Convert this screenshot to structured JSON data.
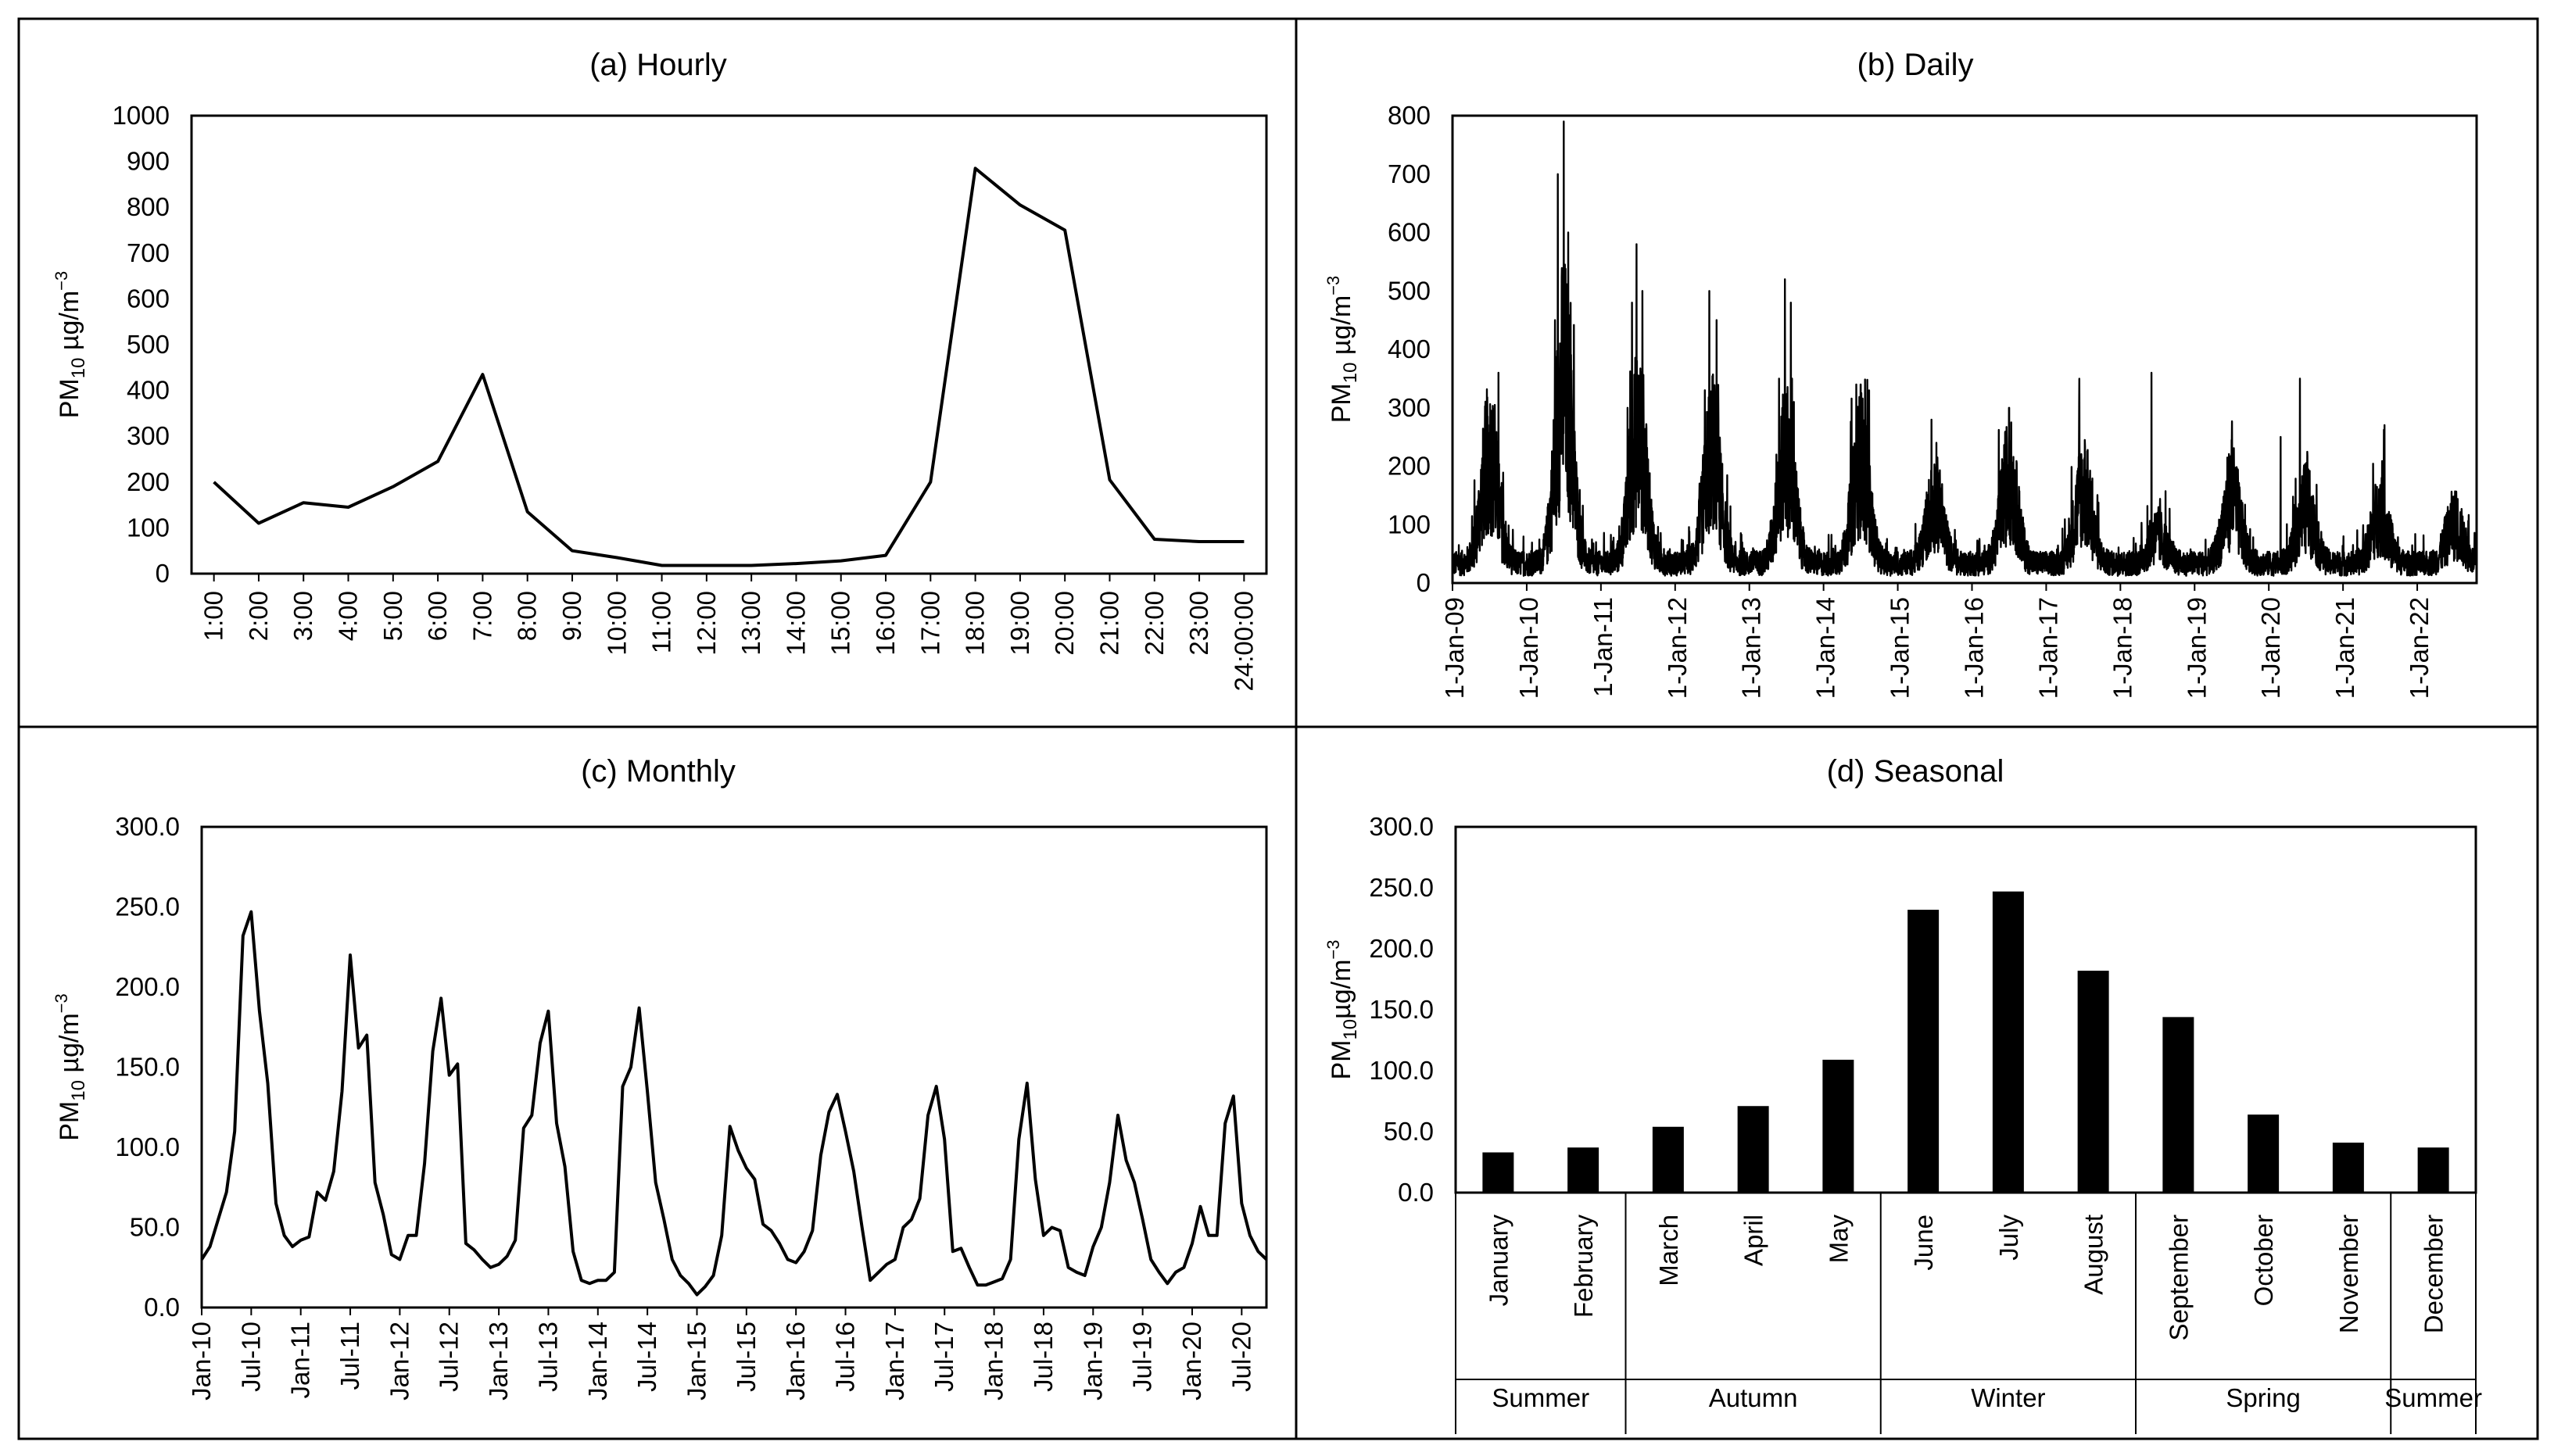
{
  "figure": {
    "frame_color": "#000000",
    "line_color": "#000000",
    "bar_color": "#000000"
  },
  "chart_data": [
    {
      "id": "hourly",
      "type": "line",
      "title": "(a) Hourly",
      "ylabel": {
        "main": "PM",
        "sub": "10",
        "unit": " µg/m",
        "sup": "−3"
      },
      "ylim": [
        0,
        1000
      ],
      "yticks": [
        0,
        100,
        200,
        300,
        400,
        500,
        600,
        700,
        800,
        900,
        1000
      ],
      "ytick_labels": [
        "0",
        "100",
        "200",
        "300",
        "400",
        "500",
        "600",
        "700",
        "800",
        "900",
        "1000"
      ],
      "categories": [
        "1:00",
        "2:00",
        "3:00",
        "4:00",
        "5:00",
        "6:00",
        "7:00",
        "8:00",
        "9:00",
        "10:00",
        "11:00",
        "12:00",
        "13:00",
        "14:00",
        "15:00",
        "16:00",
        "17:00",
        "18:00",
        "19:00",
        "20:00",
        "21:00",
        "22:00",
        "23:00",
        "24:00:00"
      ],
      "values": [
        200,
        110,
        155,
        145,
        190,
        245,
        435,
        135,
        50,
        35,
        18,
        18,
        18,
        22,
        28,
        40,
        200,
        885,
        805,
        750,
        205,
        75,
        70,
        70
      ]
    },
    {
      "id": "daily",
      "type": "line",
      "title": "(b) Daily",
      "ylabel": {
        "main": "PM",
        "sub": "10",
        "unit": " µg/m",
        "sup": "−3"
      },
      "ylim": [
        0,
        800
      ],
      "yticks": [
        0,
        100,
        200,
        300,
        400,
        500,
        600,
        700,
        800
      ],
      "ytick_labels": [
        "0",
        "100",
        "200",
        "300",
        "400",
        "500",
        "600",
        "700",
        "800"
      ],
      "xlim": [
        0,
        13.8
      ],
      "xticks": [
        0,
        1,
        2,
        3,
        4,
        5,
        6,
        7,
        8,
        9,
        10,
        11,
        12,
        13
      ],
      "xtick_labels": [
        "1-Jan-09",
        "1-Jan-10",
        "1-Jan-11",
        "1-Jan-12",
        "1-Jan-13",
        "1-Jan-14",
        "1-Jan-15",
        "1-Jan-16",
        "1-Jan-17",
        "1-Jan-18",
        "1-Jan-19",
        "1-Jan-20",
        "1-Jan-21",
        "1-Jan-22"
      ],
      "x_unit": "years since 1-Jan-09",
      "series_profile": {
        "description": "daily PM10 with winter (mid-year) peaks",
        "baseline": 35,
        "season_peak_years": [
          0.5,
          1.5,
          2.5,
          3.5,
          4.5,
          5.5,
          6.5,
          7.5,
          8.5,
          9.5,
          10.5,
          11.5,
          12.5,
          13.5
        ],
        "season_peak_levels": [
          190,
          330,
          230,
          200,
          190,
          180,
          110,
          150,
          130,
          50,
          120,
          100,
          90,
          70
        ],
        "spikes": [
          [
            0.62,
            360
          ],
          [
            1.38,
            450
          ],
          [
            1.42,
            700
          ],
          [
            1.5,
            590
          ],
          [
            1.56,
            600
          ],
          [
            2.36,
            300
          ],
          [
            2.42,
            480
          ],
          [
            2.48,
            580
          ],
          [
            2.56,
            500
          ],
          [
            3.4,
            330
          ],
          [
            3.46,
            500
          ],
          [
            3.56,
            450
          ],
          [
            4.4,
            350
          ],
          [
            4.48,
            520
          ],
          [
            4.56,
            480
          ],
          [
            4.6,
            310
          ],
          [
            5.44,
            340
          ],
          [
            5.5,
            340
          ],
          [
            6.52,
            240
          ],
          [
            7.5,
            300
          ],
          [
            8.52,
            245
          ],
          [
            9.42,
            360
          ],
          [
            10.5,
            245
          ],
          [
            11.16,
            250
          ],
          [
            11.42,
            350
          ],
          [
            12.52,
            180
          ]
        ]
      }
    },
    {
      "id": "monthly",
      "type": "line",
      "title": "(c) Monthly",
      "ylabel": {
        "main": "PM",
        "sub": "10",
        "unit": " µg/m",
        "sup": "−3"
      },
      "ylim": [
        0,
        300
      ],
      "yticks": [
        0,
        50,
        100,
        150,
        200,
        250,
        300
      ],
      "ytick_labels": [
        "0.0",
        "50.0",
        "100.0",
        "150.0",
        "200.0",
        "250.0",
        "300.0"
      ],
      "xtick_labels": [
        "Jan-10",
        "Jul-10",
        "Jan-11",
        "Jul-11",
        "Jan-12",
        "Jul-12",
        "Jan-13",
        "Jul-13",
        "Jan-14",
        "Jul-14",
        "Jan-15",
        "Jul-15",
        "Jan-16",
        "Jul-16",
        "Jan-17",
        "Jul-17",
        "Jan-18",
        "Jul-18",
        "Jan-19",
        "Jul-19",
        "Jan-20",
        "Jul-20"
      ],
      "x_start": "Jan-10",
      "values": [
        30,
        38,
        55,
        72,
        110,
        232,
        247,
        185,
        140,
        65,
        45,
        38,
        42,
        44,
        72,
        67,
        85,
        135,
        220,
        162,
        170,
        78,
        58,
        33,
        30,
        45,
        45,
        90,
        160,
        193,
        145,
        152,
        40,
        36,
        30,
        25,
        27,
        32,
        42,
        112,
        120,
        165,
        185,
        115,
        88,
        35,
        17,
        15,
        17,
        17,
        22,
        138,
        150,
        187,
        135,
        78,
        55,
        30,
        20,
        15,
        8,
        13,
        20,
        45,
        113,
        98,
        87,
        80,
        52,
        48,
        40,
        30,
        28,
        35,
        48,
        95,
        122,
        133,
        110,
        85,
        50,
        17,
        22,
        27,
        30,
        50,
        55,
        68,
        120,
        138,
        105,
        35,
        37,
        25,
        14,
        14,
        16,
        18,
        30,
        105,
        140,
        80,
        45,
        50,
        48,
        25,
        22,
        20,
        38,
        50,
        78,
        120,
        92,
        78,
        55,
        30,
        22,
        15,
        22,
        25,
        40,
        63,
        45,
        45,
        115,
        132,
        65,
        45,
        35,
        30
      ]
    },
    {
      "id": "seasonal",
      "type": "bar",
      "title": "(d) Seasonal",
      "ylabel": {
        "main": "PM",
        "sub": "10",
        "unit": "µg/m",
        "sup": "−3"
      },
      "ylim": [
        0,
        300
      ],
      "yticks": [
        0,
        50,
        100,
        150,
        200,
        250,
        300
      ],
      "ytick_labels": [
        "0.0",
        "50.0",
        "100.0",
        "150.0",
        "200.0",
        "250.0",
        "300.0"
      ],
      "categories": [
        "January",
        "February",
        "March",
        "April",
        "May",
        "June",
        "July",
        "August",
        "September",
        "October",
        "November",
        "December"
      ],
      "values": [
        33,
        37,
        54,
        71,
        109,
        232,
        247,
        182,
        144,
        64,
        41,
        37
      ],
      "seasons": [
        {
          "label": "Summer",
          "start": 0,
          "count": 2
        },
        {
          "label": "Autumn",
          "start": 2,
          "count": 3
        },
        {
          "label": "Winter",
          "start": 5,
          "count": 3
        },
        {
          "label": "Spring",
          "start": 8,
          "count": 3
        },
        {
          "label": "Summer",
          "start": 11,
          "count": 1
        }
      ]
    }
  ]
}
